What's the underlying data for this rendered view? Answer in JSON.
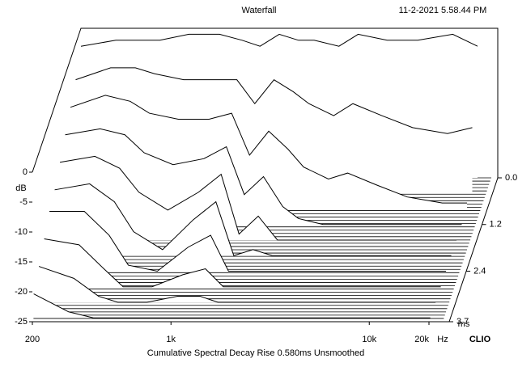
{
  "chart_data": {
    "type": "waterfall",
    "title": "Waterfall",
    "timestamp": "11-2-2021 5.58.44 PM",
    "subtitle": "Cumulative Spectral Decay   Rise 0.580ms   Unsmoothed",
    "brand": "CLIO",
    "y_label": "dB",
    "x_unit": "Hz",
    "z_unit": "ms",
    "x": [
      200,
      300,
      400,
      500,
      700,
      1000,
      1300,
      1600,
      2000,
      2500,
      3000,
      4000,
      5000,
      7000,
      10000,
      15000,
      20000
    ],
    "z": [
      0,
      0.4,
      0.8,
      1.2,
      1.6,
      2.0,
      2.4,
      2.8,
      3.2,
      3.6
    ],
    "values": [
      [
        -3,
        -2,
        -2,
        -2,
        -1,
        -1,
        -2,
        -3,
        -1,
        -2,
        -2,
        -3,
        -1,
        -2,
        -2,
        -1,
        -3
      ],
      [
        -6,
        -4,
        -4,
        -5,
        -6,
        -6,
        -6,
        -10,
        -6,
        -8,
        -10,
        -12,
        -10,
        -12,
        -14,
        -15,
        -14
      ],
      [
        -8,
        -6,
        -7,
        -9,
        -10,
        -10,
        -9,
        -16,
        -12,
        -15,
        -18,
        -20,
        -19,
        -21,
        -23,
        -24,
        -24
      ],
      [
        -10,
        -9,
        -10,
        -13,
        -15,
        -14,
        -12,
        -20,
        -17,
        -22,
        -24,
        -25,
        -25,
        -25,
        -25,
        -25,
        -25
      ],
      [
        -12,
        -11,
        -13,
        -17,
        -20,
        -17,
        -14,
        -24,
        -21,
        -25,
        -25,
        -25,
        -25,
        -25,
        -25,
        -25,
        -25
      ],
      [
        -14,
        -13,
        -16,
        -21,
        -24,
        -19,
        -16,
        -25,
        -24,
        -25,
        -25,
        -25,
        -25,
        -25,
        -25,
        -25,
        -25
      ],
      [
        -15,
        -15,
        -19,
        -24,
        -25,
        -21,
        -19,
        -25,
        -25,
        -25,
        -25,
        -25,
        -25,
        -25,
        -25,
        -25,
        -25
      ],
      [
        -17,
        -18,
        -22,
        -25,
        -25,
        -23,
        -22,
        -25,
        -25,
        -25,
        -25,
        -25,
        -25,
        -25,
        -25,
        -25,
        -25
      ],
      [
        -19,
        -21,
        -24,
        -25,
        -25,
        -24,
        -24,
        -25,
        -25,
        -25,
        -25,
        -25,
        -25,
        -25,
        -25,
        -25,
        -25
      ],
      [
        -21,
        -24,
        -25,
        -25,
        -25,
        -25,
        -25,
        -25,
        -25,
        -25,
        -25,
        -25,
        -25,
        -25,
        -25,
        -25,
        -25
      ]
    ],
    "xlim": [
      200,
      20000
    ],
    "log_x": true,
    "xticks": [
      200,
      {
        "value": 1000,
        "label": "1k"
      },
      {
        "value": 10000,
        "label": "10k"
      },
      {
        "value": 20000,
        "label": "20k"
      }
    ],
    "ylim": [
      -25,
      0
    ],
    "yticks": [
      0,
      -5,
      -10,
      -15,
      -20,
      -25
    ],
    "zlim": [
      0,
      3.7
    ],
    "zticks": [
      {
        "value": 0,
        "label": "0.0"
      },
      1.2,
      2.4,
      3.7
    ],
    "line_color": "#000000",
    "fill_color": "#ffffff"
  }
}
